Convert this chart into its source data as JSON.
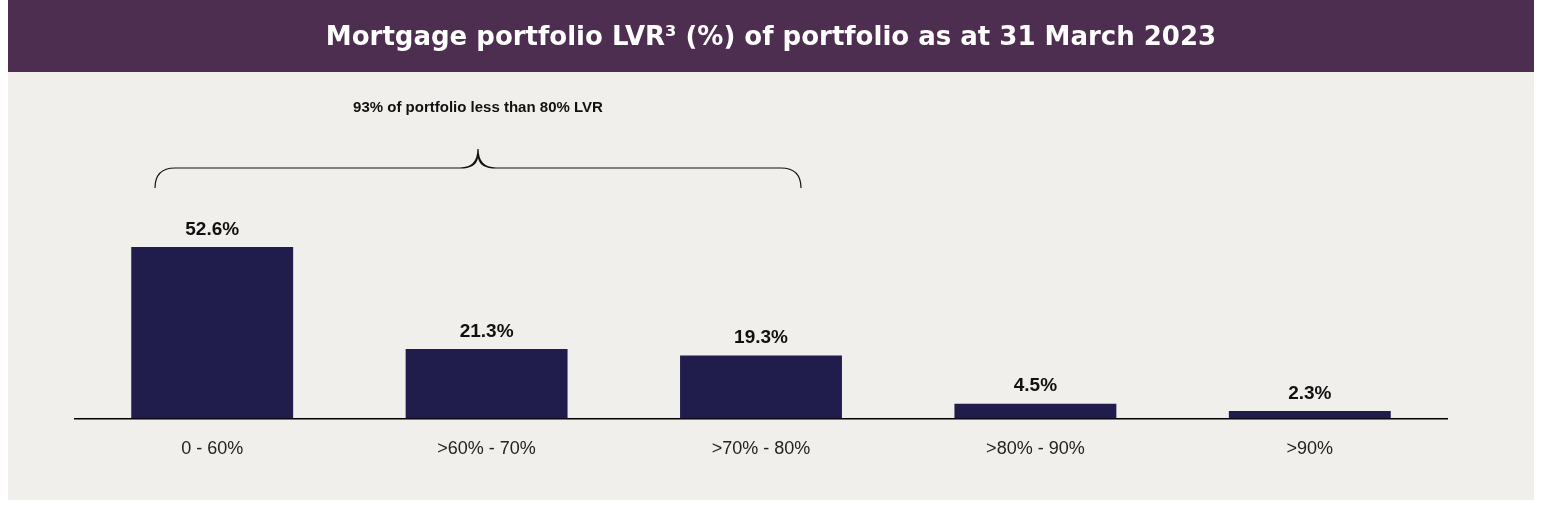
{
  "chart_data": {
    "type": "bar",
    "title": "Mortgage portfolio LVR³ (%) of portfolio as at 31 March 2023",
    "categories": [
      "0 - 60%",
      ">60% - 70%",
      ">70% - 80%",
      ">80% - 90%",
      ">90%"
    ],
    "values": [
      52.6,
      21.3,
      19.3,
      4.5,
      2.3
    ],
    "color": "#201c4c",
    "value_labels": [
      "52.6%",
      "21.3%",
      "19.3%",
      "4.5%",
      "2.3%"
    ],
    "annotations": [
      "93% of portfolio less than 80% LVR"
    ],
    "grid": false,
    "legend": false
  }
}
